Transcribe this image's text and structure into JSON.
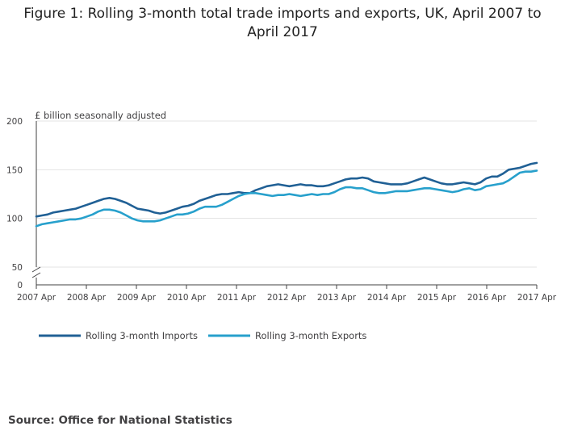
{
  "chart_data": {
    "type": "line",
    "title": "Figure 1: Rolling 3-month total trade imports and exports, UK, April 2007 to April 2017",
    "title_lines": [
      "Figure 1: Rolling 3-month total trade imports and exports, UK, April 2007 to",
      "April 2017"
    ],
    "ylabel": "£ billion seasonally adjusted",
    "xlabel": "",
    "ylim": [
      0,
      200
    ],
    "y_axis_break": [
      0,
      50
    ],
    "y_ticks": [
      "200",
      "150",
      "100",
      "50",
      "0"
    ],
    "x_ticks": [
      "2007 Apr",
      "2008 Apr",
      "2009 Apr",
      "2010 Apr",
      "2011 Apr",
      "2012 Apr",
      "2013 Apr",
      "2014 Apr",
      "2015 Apr",
      "2016 Apr",
      "2017 Apr"
    ],
    "x_start": "2007 Apr",
    "x_end": "2017 Apr",
    "legend_position": "bottom-left",
    "series": [
      {
        "name": "Rolling 3-month Imports",
        "color": "#206095",
        "values": [
          102,
          103,
          104,
          106,
          107,
          108,
          109,
          110,
          112,
          114,
          116,
          118,
          120,
          121,
          120,
          118,
          116,
          113,
          110,
          109,
          108,
          106,
          105,
          106,
          108,
          110,
          112,
          113,
          115,
          118,
          120,
          122,
          124,
          125,
          125,
          126,
          127,
          126,
          126,
          129,
          131,
          133,
          134,
          135,
          134,
          133,
          134,
          135,
          134,
          134,
          133,
          133,
          134,
          136,
          138,
          140,
          141,
          141,
          142,
          141,
          138,
          137,
          136,
          135,
          135,
          135,
          136,
          138,
          140,
          142,
          140,
          138,
          136,
          135,
          135,
          136,
          137,
          136,
          135,
          137,
          141,
          143,
          143,
          146,
          150,
          151,
          152,
          154,
          156,
          157
        ]
      },
      {
        "name": "Rolling 3-month Exports",
        "color": "#27A0CC",
        "values": [
          92,
          94,
          95,
          96,
          97,
          98,
          99,
          99,
          100,
          102,
          104,
          107,
          109,
          109,
          108,
          106,
          103,
          100,
          98,
          97,
          97,
          97,
          98,
          100,
          102,
          104,
          104,
          105,
          107,
          110,
          112,
          112,
          112,
          114,
          117,
          120,
          123,
          125,
          126,
          126,
          125,
          124,
          123,
          124,
          124,
          125,
          124,
          123,
          124,
          125,
          124,
          125,
          125,
          127,
          130,
          132,
          132,
          131,
          131,
          129,
          127,
          126,
          126,
          127,
          128,
          128,
          128,
          129,
          130,
          131,
          131,
          130,
          129,
          128,
          127,
          128,
          130,
          131,
          129,
          130,
          133,
          134,
          135,
          136,
          139,
          143,
          147,
          148,
          148,
          149
        ]
      }
    ],
    "source": "Source: Office for National Statistics"
  }
}
